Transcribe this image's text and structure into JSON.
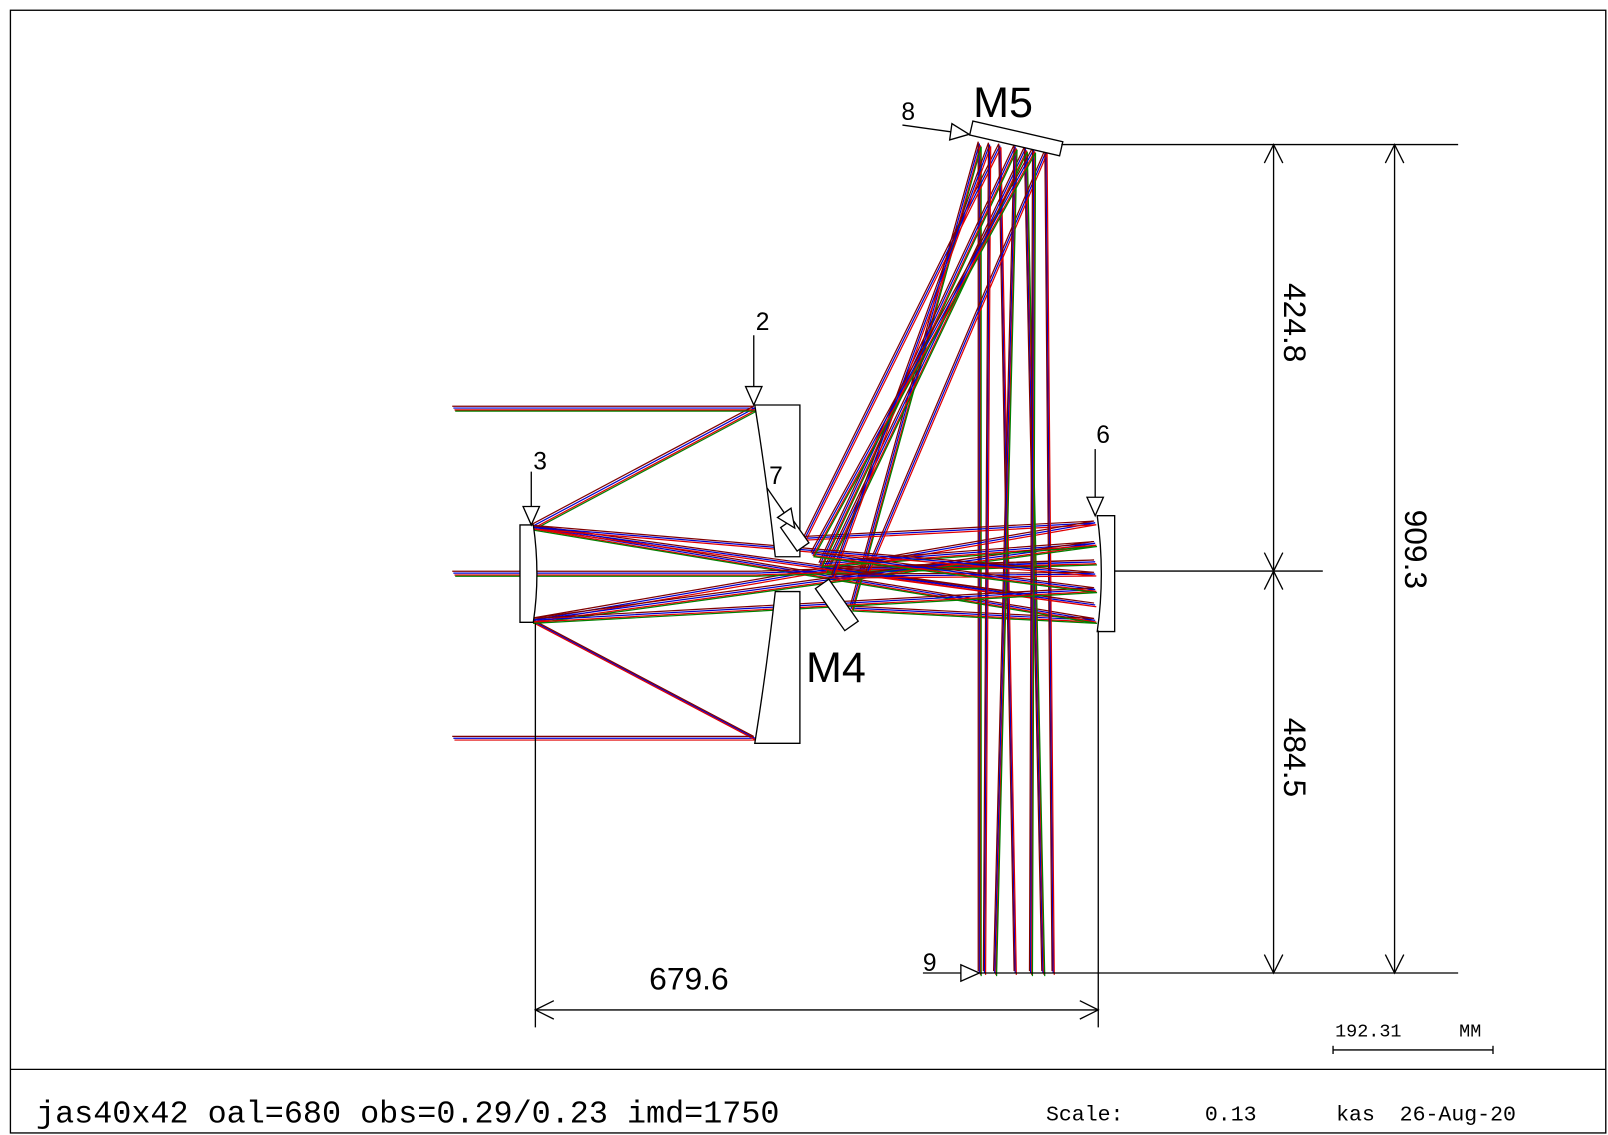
{
  "surface_labels": [
    "2",
    "3",
    "6",
    "7",
    "8",
    "9"
  ],
  "mirror_labels": [
    "M4",
    "M5"
  ],
  "dimensions": [
    "424.8",
    "484.5",
    "909.3",
    "679.6"
  ],
  "scale_bar": {
    "length": "192.31",
    "unit": "MM"
  },
  "footer": {
    "design": "jas40x42 oal=680 obs=0.29/0.23 imd=1750",
    "scale_label": "Scale:",
    "scale": "0.13",
    "author": "kas",
    "date": "26-Aug-20"
  }
}
